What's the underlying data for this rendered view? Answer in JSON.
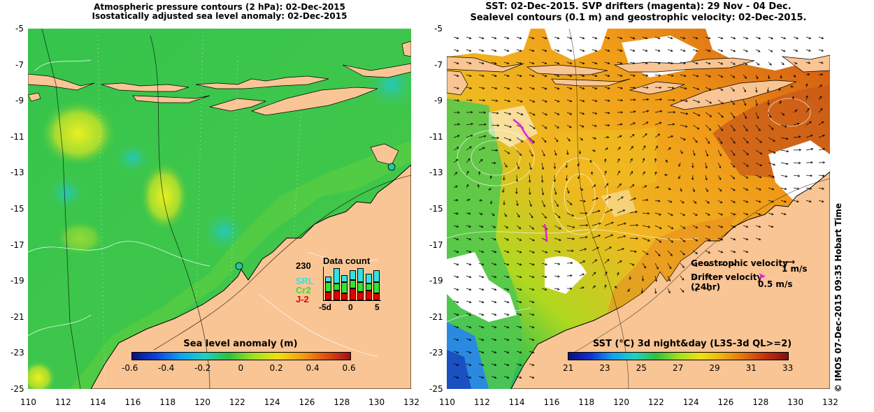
{
  "left_panel": {
    "title_line1": "Atmospheric pressure contours (2 hPa): 02-Dec-2015",
    "title_line2": "Isostatically adjusted sea level anomaly: 02-Dec-2015",
    "colorbar_title": "Sea level anomaly (m)",
    "colorbar_ticks": [
      "-0.6",
      "-0.4",
      "-0.2",
      "0",
      "0.2",
      "0.4",
      "0.6"
    ],
    "inset": {
      "title": "Data count",
      "ymax": "230",
      "legend": [
        {
          "label": "SRL",
          "color": "#33e3e3"
        },
        {
          "label": "Cr2",
          "color": "#33e333"
        },
        {
          "label": "J-2",
          "color": "#e30000"
        }
      ],
      "xticks": [
        "-5d",
        "0",
        "5"
      ],
      "bars": [
        {
          "red": 0.25,
          "green": 0.3,
          "cyan": 0.15
        },
        {
          "red": 0.3,
          "green": 0.2,
          "cyan": 0.45
        },
        {
          "red": 0.2,
          "green": 0.35,
          "cyan": 0.2
        },
        {
          "red": 0.35,
          "green": 0.25,
          "cyan": 0.3
        },
        {
          "red": 0.25,
          "green": 0.3,
          "cyan": 0.4
        },
        {
          "red": 0.3,
          "green": 0.2,
          "cyan": 0.3
        },
        {
          "red": 0.2,
          "green": 0.35,
          "cyan": 0.35
        }
      ]
    }
  },
  "right_panel": {
    "title_line1": "SST: 02-Dec-2015. SVP drifters (magenta): 29 Nov - 04 Dec.",
    "title_line2": "Sealevel contours (0.1 m) and geostrophic velocity: 02-Dec-2015.",
    "colorbar_title": "SST (°C) 3d night&day (L3S-3d QL>=2)",
    "colorbar_ticks": [
      "21",
      "23",
      "25",
      "27",
      "29",
      "31",
      "33"
    ],
    "legend_geo": "Geostrophic velocity",
    "legend_geo_scale": "1 m/s",
    "legend_drifter_line1": "Drifter velocity",
    "legend_drifter_line2": "(24hr)",
    "legend_drifter_scale": "0.5 m/s"
  },
  "axes": {
    "y_ticks": [
      "-5",
      "-7",
      "-9",
      "-11",
      "-13",
      "-15",
      "-17",
      "-19",
      "-21",
      "-23",
      "-25"
    ],
    "x_ticks": [
      "110",
      "112",
      "114",
      "116",
      "118",
      "120",
      "122",
      "124",
      "126",
      "128",
      "130",
      "132"
    ]
  },
  "credit": "© IMOS 07-Dec-2015 09:35 Hobart Time",
  "colors": {
    "land": "#f9c594",
    "ocean_green": "#3cc84a",
    "sst_orange": "#f2a21a",
    "magenta": "#e020e0"
  }
}
